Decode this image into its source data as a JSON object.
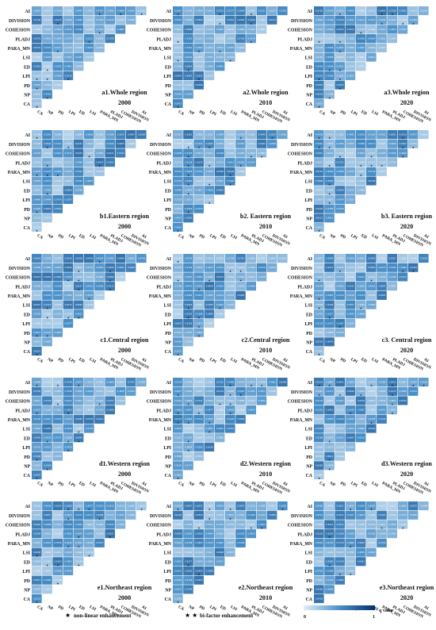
{
  "chart_data": {
    "type": "heatmap",
    "row_labels": [
      "AI",
      "DIVISION",
      "COHESION",
      "PLADJ",
      "PARA_MN",
      "LSI",
      "ED",
      "LPI",
      "PD",
      "NP",
      "CA"
    ],
    "col_labels": [
      "CA",
      "NP",
      "PD",
      "LPI",
      "ED",
      "LSI",
      "PARA_MN",
      "PLADJ",
      "COHESION",
      "DIVISION",
      "AI"
    ],
    "panels": [
      {
        "title_line1": "a1.Whole region",
        "title_line2": "2000"
      },
      {
        "title_line1": "a2.Whole region",
        "title_line2": "2010"
      },
      {
        "title_line1": "a3.Whole region",
        "title_line2": "2020"
      },
      {
        "title_line1": "b1.Eastern region",
        "title_line2": "2000"
      },
      {
        "title_line1": "b2. Eastern region",
        "title_line2": "2010"
      },
      {
        "title_line1": "b3. Eastern region",
        "title_line2": "2020"
      },
      {
        "title_line1": "c1.Central region",
        "title_line2": "2000"
      },
      {
        "title_line1": "c2.Central region",
        "title_line2": "2010"
      },
      {
        "title_line1": "c3. Central region",
        "title_line2": "2020"
      },
      {
        "title_line1": "d1.Western region",
        "title_line2": "2000"
      },
      {
        "title_line1": "d2.Western region",
        "title_line2": "2010"
      },
      {
        "title_line1": "d3.Western region",
        "title_line2": "2020"
      },
      {
        "title_line1": "e1.Northeast region",
        "title_line2": "2000"
      },
      {
        "title_line1": "e2.Northeast region",
        "title_line2": "2010"
      },
      {
        "title_line1": "e3.Northeast region",
        "title_line2": "2020"
      }
    ],
    "legend": {
      "nonlinear": "non-linear enhancement",
      "bifactor": "bi-factor enhancement",
      "colorbar_min": "0",
      "colorbar_max": "1",
      "colorbar_label": "q value",
      "colors": [
        "#e3eef8",
        "#08306b"
      ]
    }
  }
}
